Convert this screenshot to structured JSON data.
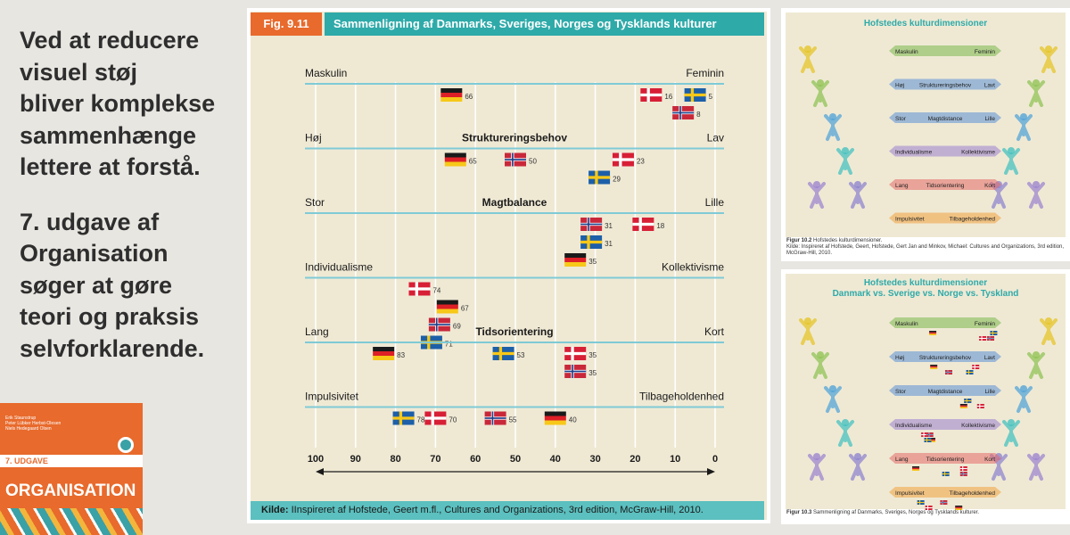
{
  "left_text": {
    "para1": [
      "Ved at reducere",
      "visuel støj",
      "bliver komplekse",
      "sammenhænge",
      "lettere at forstå."
    ],
    "para2": [
      "7. udgave af",
      "Organisation",
      "søger at gøre",
      "teori og praksis",
      "selvforklarende."
    ]
  },
  "book_cover": {
    "authors": [
      "Erik Staunstrup",
      "Peter Lübker Herbst-Olesen",
      "Niels Hedegaard Olsen"
    ],
    "edition": "7. UDGAVE",
    "title": "ORGANISATION"
  },
  "figure": {
    "label": "Fig. 9.11",
    "title": "Sammenligning af Danmarks, Sveriges, Norges og Tysklands kulturer",
    "source_label": "Kilde:",
    "source_text": "IInspireret af Hofstede, Geert m.fl., Cultures and Organizations, 3rd edition, McGraw-Hill, 2010."
  },
  "colors": {
    "orange": "#e86a2c",
    "teal": "#2eaaa9",
    "teal_light": "#5bc0bf",
    "line": "#7fcad6",
    "bg": "#efe9d4"
  },
  "chart_data": {
    "type": "dot-plot",
    "title": "Sammenligning af Danmarks, Sveriges, Norges og Tysklands kulturer",
    "xlim": [
      100,
      0
    ],
    "x_ticks": [
      100,
      90,
      80,
      70,
      60,
      50,
      40,
      30,
      20,
      10,
      0
    ],
    "countries": [
      "Danmark",
      "Sverige",
      "Norge",
      "Tyskland"
    ],
    "dimensions": [
      {
        "left": "Maskulin",
        "center": "",
        "right": "Feminin",
        "values": [
          {
            "country": "Tyskland",
            "value": 66
          },
          {
            "country": "Danmark",
            "value": 16
          },
          {
            "country": "Sverige",
            "value": 5
          },
          {
            "country": "Norge",
            "value": 8
          }
        ]
      },
      {
        "left": "Høj",
        "center": "Struktureringsbehov",
        "right": "Lav",
        "values": [
          {
            "country": "Tyskland",
            "value": 65
          },
          {
            "country": "Norge",
            "value": 50
          },
          {
            "country": "Danmark",
            "value": 23
          },
          {
            "country": "Sverige",
            "value": 29
          }
        ]
      },
      {
        "left": "Stor",
        "center": "Magtbalance",
        "right": "Lille",
        "values": [
          {
            "country": "Norge",
            "value": 31
          },
          {
            "country": "Danmark",
            "value": 18
          },
          {
            "country": "Sverige",
            "value": 31
          },
          {
            "country": "Tyskland",
            "value": 35
          }
        ]
      },
      {
        "left": "Individualisme",
        "center": "",
        "right": "Kollektivisme",
        "values": [
          {
            "country": "Danmark",
            "value": 74
          },
          {
            "country": "Tyskland",
            "value": 67
          },
          {
            "country": "Norge",
            "value": 69
          },
          {
            "country": "Sverige",
            "value": 71
          }
        ]
      },
      {
        "left": "Lang",
        "center": "Tidsorientering",
        "right": "Kort",
        "values": [
          {
            "country": "Tyskland",
            "value": 83
          },
          {
            "country": "Sverige",
            "value": 53
          },
          {
            "country": "Danmark",
            "value": 35
          },
          {
            "country": "Norge",
            "value": 35
          }
        ]
      },
      {
        "left": "Impulsivitet",
        "center": "",
        "right": "Tilbageholdenhed",
        "values": [
          {
            "country": "Sverige",
            "value": 78
          },
          {
            "country": "Danmark",
            "value": 70
          },
          {
            "country": "Norge",
            "value": 55
          },
          {
            "country": "Tyskland",
            "value": 40
          }
        ]
      }
    ]
  },
  "thumb_top": {
    "title": "Hofstedes kulturdimensioner",
    "rows": [
      {
        "left": "Maskulin",
        "center": "",
        "right": "Feminin"
      },
      {
        "left": "Høj",
        "center": "Struktureringsbehov",
        "right": "Lavt"
      },
      {
        "left": "Stor",
        "center": "Magtdistance",
        "right": "Lille"
      },
      {
        "left": "Individualisme",
        "center": "",
        "right": "Kollektivisme"
      },
      {
        "left": "Lang",
        "center": "Tidsorientering",
        "right": "Kort"
      },
      {
        "left": "Impulsivitet",
        "center": "",
        "right": "Tilbageholdenhed"
      }
    ],
    "caption_bold": "Figur 10.2",
    "caption": "Hofstedes kulturdimensioner.",
    "caption2": "Kilde: Inspireret af Hofstede, Geert, Hofstede, Gert Jan and Minkov, Michael: Cultures and Organizations, 3rd edition, McGraw-Hill, 2010."
  },
  "thumb_bottom": {
    "title": "Hofstedes kulturdimensioner",
    "legend": [
      "Danmark vs.",
      "Sverige vs.",
      "Norge vs.",
      "Tyskland"
    ],
    "rows": [
      {
        "left": "Maskulin",
        "center": "",
        "right": "Feminin"
      },
      {
        "left": "Høj",
        "center": "Struktureringsbehov",
        "right": "Lavt"
      },
      {
        "left": "Stor",
        "center": "Magtdistance",
        "right": "Lille"
      },
      {
        "left": "Individualisme",
        "center": "",
        "right": "Kollektivisme"
      },
      {
        "left": "Lang",
        "center": "Tidsorientering",
        "right": "Kort"
      },
      {
        "left": "Impulsivitet",
        "center": "",
        "right": "Tilbageholdenhed"
      }
    ],
    "caption_bold": "Figur 10.3",
    "caption": "Sammenligning af Danmarks, Sveriges, Norges og Tysklands kulturer."
  }
}
